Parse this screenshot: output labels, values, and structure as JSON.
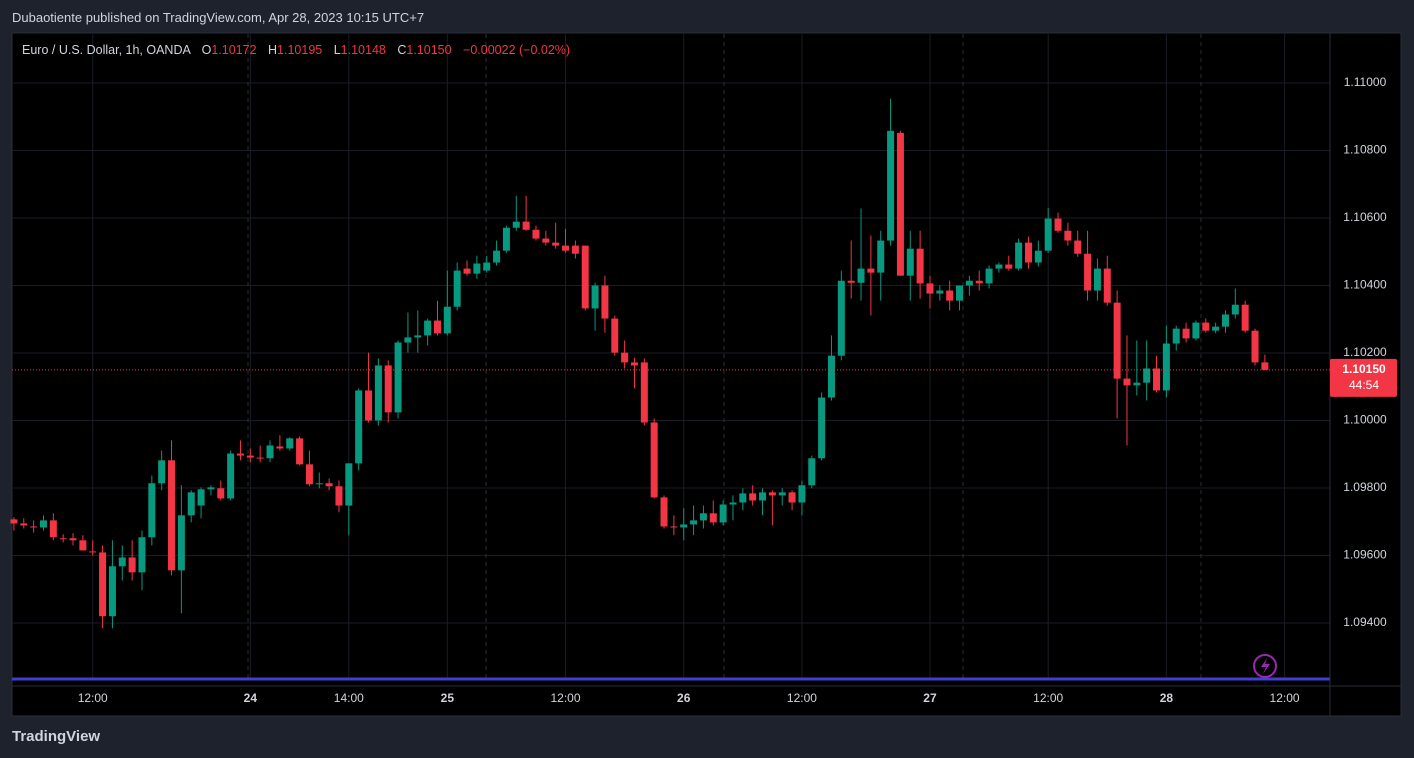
{
  "header": {
    "published": "Dubaotiente published on TradingView.com, Apr 28, 2023 10:15 UTC+7",
    "footer": "TradingView"
  },
  "chart_data": {
    "type": "candlestick",
    "title": "Euro / U.S. Dollar, 1h, OANDA",
    "ohlc_labels": [
      "O",
      "H",
      "L",
      "C"
    ],
    "ohlc_values": [
      "1.10172",
      "1.10195",
      "1.10148",
      "1.10150"
    ],
    "change": "−0.00022 (−0.02%)",
    "up_color": "#089981",
    "down_color": "#f23645",
    "categories": [
      null,
      null,
      null,
      null,
      null,
      null,
      null,
      null,
      "12:00",
      null,
      null,
      null,
      null,
      null,
      null,
      null,
      null,
      null,
      null,
      null,
      null,
      null,
      null,
      null,
      "24",
      null,
      null,
      null,
      null,
      null,
      null,
      null,
      null,
      null,
      "14:00",
      null,
      null,
      null,
      null,
      null,
      null,
      null,
      null,
      null,
      "25",
      null,
      null,
      null,
      null,
      null,
      null,
      null,
      null,
      null,
      null,
      null,
      "12:00",
      null,
      null,
      null,
      null,
      null,
      null,
      null,
      null,
      null,
      null,
      null,
      "26",
      null,
      null,
      null,
      null,
      null,
      null,
      null,
      null,
      null,
      null,
      null,
      "12:00",
      null,
      null,
      null,
      null,
      null,
      null,
      null,
      null,
      null,
      null,
      null,
      null,
      "27",
      null,
      null,
      null,
      null,
      null,
      null,
      null,
      null,
      null,
      null,
      null,
      "12:00",
      null,
      null,
      null,
      null,
      null,
      null,
      null,
      null,
      null,
      null,
      null,
      "28",
      null,
      null,
      null,
      null,
      null,
      null,
      null,
      null,
      null,
      null,
      null,
      "12:00"
    ],
    "open": [
      1.09707,
      1.09695,
      1.09686,
      1.09683,
      1.09704,
      1.09651,
      1.09651,
      1.09645,
      1.09612,
      1.09609,
      1.0942,
      1.09568,
      1.09594,
      1.0955,
      1.09654,
      1.09814,
      1.09882,
      1.09556,
      1.09719,
      1.09748,
      1.09796,
      1.09799,
      1.09769,
      1.09902,
      1.09896,
      1.0989,
      1.09888,
      1.09923,
      1.09917,
      1.09947,
      1.0987,
      1.09811,
      1.09814,
      1.09805,
      1.09748,
      1.09873,
      1.10089,
      1.1,
      1.10163,
      1.10024,
      1.10231,
      1.10246,
      1.10252,
      1.10296,
      1.10258,
      1.10337,
      1.1045,
      1.10435,
      1.10444,
      1.10468,
      1.10503,
      1.10571,
      1.10589,
      1.10565,
      1.10539,
      1.10527,
      1.10518,
      1.10518,
      1.10518,
      1.10332,
      1.104,
      1.10302,
      1.10201,
      1.10172,
      1.10172,
      1.09994,
      1.09772,
      1.09686,
      1.09683,
      1.09692,
      1.09704,
      1.09725,
      1.09698,
      1.09751,
      1.09757,
      1.09784,
      1.09763,
      1.09787,
      1.09778,
      1.09787,
      1.09757,
      1.09808,
      1.09888,
      1.10068,
      1.10192,
      1.10414,
      1.10408,
      1.1045,
      1.10438,
      1.10533,
      1.10852,
      1.10429,
      1.10509,
      1.10406,
      1.10376,
      1.10385,
      1.10355,
      1.104,
      1.10414,
      1.10406,
      1.1045,
      1.10462,
      1.1045,
      1.10527,
      1.10468,
      1.10503,
      1.10598,
      1.10562,
      1.10533,
      1.10494,
      1.10385,
      1.1045,
      1.10349,
      1.10124,
      1.10104,
      1.10112,
      1.10154,
      1.10089,
      1.10228,
      1.10272,
      1.10243,
      1.1029,
      1.10266,
      1.10278,
      1.10314,
      1.10343,
      1.10266,
      1.10172,
      null,
      null
    ],
    "high": [
      1.09713,
      1.0971,
      1.09704,
      1.09719,
      1.09725,
      1.09663,
      1.09666,
      1.0966,
      1.09645,
      1.0963,
      1.09645,
      1.0963,
      1.09645,
      1.09674,
      1.09837,
      1.09911,
      1.09941,
      1.09808,
      1.09793,
      1.09802,
      1.09808,
      1.09822,
      1.09911,
      1.09941,
      1.09917,
      1.09926,
      1.09941,
      1.09956,
      1.0995,
      1.09953,
      1.09911,
      1.09846,
      1.09828,
      1.09822,
      1.09873,
      1.10095,
      1.10201,
      1.10184,
      1.10178,
      1.10237,
      1.1032,
      1.10326,
      1.10302,
      1.10355,
      1.10444,
      1.10468,
      1.10474,
      1.10488,
      1.10488,
      1.10533,
      1.10577,
      1.10666,
      1.10666,
      1.10577,
      1.10562,
      1.10586,
      1.10568,
      1.10533,
      1.10518,
      1.10408,
      1.10429,
      1.10311,
      1.10237,
      1.10186,
      1.10184,
      1.10006,
      1.09778,
      1.09719,
      1.0974,
      1.09748,
      1.09748,
      1.09763,
      1.09763,
      1.09778,
      1.09799,
      1.09808,
      1.09799,
      1.09793,
      1.09799,
      1.09793,
      1.09822,
      1.09896,
      1.10083,
      1.10252,
      1.10444,
      1.10533,
      1.10628,
      1.10548,
      1.10562,
      1.10953,
      1.10858,
      1.10562,
      1.10562,
      1.10429,
      1.104,
      1.10414,
      1.104,
      1.10429,
      1.10444,
      1.10459,
      1.10468,
      1.10488,
      1.10539,
      1.10545,
      1.10533,
      1.1063,
      1.10616,
      1.10586,
      1.10562,
      1.10562,
      1.1048,
      1.10488,
      1.10385,
      1.10252,
      1.10237,
      1.10237,
      1.10192,
      1.10281,
      1.10281,
      1.1029,
      1.10296,
      1.10302,
      1.1029,
      1.10326,
      1.10391,
      1.10355,
      1.10272,
      1.10195,
      null,
      null
    ],
    "low": [
      1.09674,
      1.0968,
      1.09668,
      1.09674,
      1.09645,
      1.09639,
      1.0963,
      1.09615,
      1.096,
      1.09384,
      1.09384,
      1.09526,
      1.09526,
      1.09497,
      1.0963,
      1.09793,
      1.09541,
      1.09429,
      1.09698,
      1.0971,
      1.09778,
      1.09763,
      1.09763,
      1.09882,
      1.09876,
      1.09876,
      1.09876,
      1.09911,
      1.09911,
      1.09867,
      1.09805,
      1.09799,
      1.09793,
      1.09728,
      1.0966,
      1.09852,
      1.09994,
      1.09985,
      1.09994,
      1.10006,
      1.10201,
      1.10201,
      1.10222,
      1.10252,
      1.10252,
      1.10326,
      1.10429,
      1.1042,
      1.10438,
      1.10459,
      1.10497,
      1.10562,
      1.10562,
      1.10533,
      1.10518,
      1.10509,
      1.10497,
      1.1048,
      1.10326,
      1.10266,
      1.1026,
      1.10192,
      1.10154,
      1.10095,
      1.09985,
      1.09769,
      1.0968,
      1.0966,
      1.09645,
      1.0966,
      1.0968,
      1.09689,
      1.09689,
      1.09704,
      1.09734,
      1.09748,
      1.09719,
      1.09689,
      1.09748,
      1.09734,
      1.09719,
      1.09799,
      1.09882,
      1.10059,
      1.10178,
      1.10361,
      1.10355,
      1.10311,
      1.10355,
      1.10518,
      1.10429,
      1.10355,
      1.10361,
      1.10332,
      1.10355,
      1.10326,
      1.10326,
      1.1037,
      1.10385,
      1.10391,
      1.10438,
      1.10444,
      1.10444,
      1.1045,
      1.10456,
      1.10497,
      1.10556,
      1.10518,
      1.10485,
      1.10355,
      1.10355,
      1.1034,
      1.10006,
      1.09926,
      1.10074,
      1.10059,
      1.10083,
      1.10068,
      1.10207,
      1.10231,
      1.10237,
      1.1026,
      1.10258,
      1.1026,
      1.10302,
      1.1026,
      1.10163,
      1.10148,
      null,
      null
    ],
    "close": [
      1.09695,
      1.09689,
      1.09683,
      1.09704,
      1.09654,
      1.09648,
      1.09645,
      1.09615,
      1.09609,
      1.0942,
      1.09568,
      1.09594,
      1.0955,
      1.09654,
      1.09814,
      1.09882,
      1.09556,
      1.09719,
      1.09787,
      1.09796,
      1.09802,
      1.09769,
      1.09902,
      1.09896,
      1.0989,
      1.09888,
      1.09926,
      1.09917,
      1.09947,
      1.0987,
      1.09811,
      1.09814,
      1.09805,
      1.09748,
      1.09873,
      1.10089,
      1.1,
      1.10163,
      1.10024,
      1.10231,
      1.10246,
      1.10252,
      1.10296,
      1.10258,
      1.10337,
      1.10444,
      1.10435,
      1.10465,
      1.10468,
      1.10503,
      1.10571,
      1.10589,
      1.10565,
      1.10539,
      1.10527,
      1.10518,
      1.10503,
      1.10494,
      1.10332,
      1.104,
      1.10302,
      1.10201,
      1.10172,
      1.10163,
      1.09994,
      1.09772,
      1.09686,
      1.09683,
      1.09692,
      1.09704,
      1.09725,
      1.09698,
      1.09751,
      1.09757,
      1.09784,
      1.09763,
      1.09787,
      1.09778,
      1.09787,
      1.09757,
      1.09808,
      1.09888,
      1.10068,
      1.10192,
      1.10414,
      1.10408,
      1.1045,
      1.10438,
      1.10533,
      1.10858,
      1.10429,
      1.10509,
      1.10406,
      1.10376,
      1.10385,
      1.10355,
      1.104,
      1.10414,
      1.10406,
      1.1045,
      1.10462,
      1.1045,
      1.10527,
      1.10468,
      1.10503,
      1.10598,
      1.10562,
      1.10533,
      1.10494,
      1.10385,
      1.1045,
      1.10349,
      1.10124,
      1.10104,
      1.10112,
      1.10154,
      1.10089,
      1.10228,
      1.10272,
      1.10243,
      1.1029,
      1.10266,
      1.10278,
      1.10314,
      1.10343,
      1.10266,
      1.10172,
      1.1015,
      null,
      null
    ],
    "ylim": [
      1.09237,
      1.11145
    ],
    "yticks": [
      {
        "value": 1.094,
        "label": "1.09400"
      },
      {
        "value": 1.096,
        "label": "1.09600"
      },
      {
        "value": 1.098,
        "label": "1.09800"
      },
      {
        "value": 1.1,
        "label": "1.10000"
      },
      {
        "value": 1.102,
        "label": "1.10200"
      },
      {
        "value": 1.104,
        "label": "1.10400"
      },
      {
        "value": 1.106,
        "label": "1.10600"
      },
      {
        "value": 1.108,
        "label": "1.10800"
      },
      {
        "value": 1.11,
        "label": "1.11000"
      }
    ],
    "last_price": {
      "value": 1.1015,
      "label": "1.10150"
    },
    "countdown": "44:54",
    "grid": true
  }
}
